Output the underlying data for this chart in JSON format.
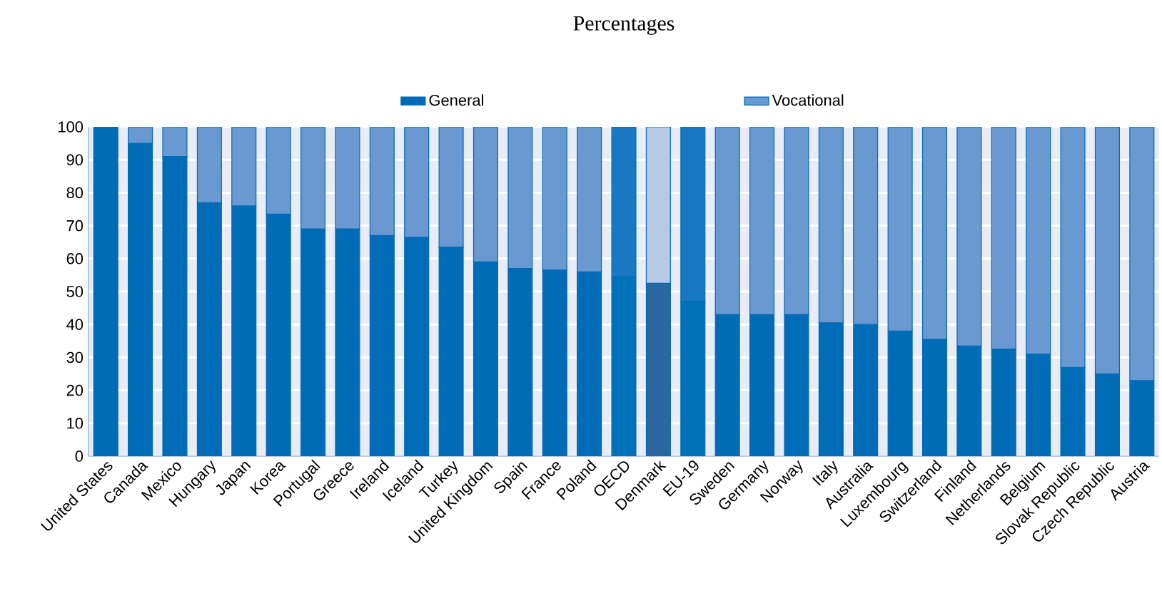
{
  "chart_data": {
    "type": "bar",
    "title": "Percentages",
    "stacked": true,
    "grid": "y",
    "legend": "top",
    "categories": [
      "United States",
      "Canada",
      "Mexico",
      "Hungary",
      "Japan",
      "Korea",
      "Portugal",
      "Greece",
      "Ireland",
      "Iceland",
      "Turkey",
      "United Kingdom",
      "Spain",
      "France",
      "Poland",
      "OECD",
      "Denmark",
      "EU-19",
      "Sweden",
      "Germany",
      "Norway",
      "Italy",
      "Australia",
      "Luxembourg",
      "Switzerland",
      "Finland",
      "Netherlands",
      "Belgium",
      "Slovak Republic",
      "Czech Republic",
      "Austria"
    ],
    "series": [
      {
        "name": "General",
        "color": "#006bb6",
        "values": [
          100,
          95,
          91,
          77,
          76,
          73.5,
          69,
          69,
          67,
          66.5,
          63.5,
          59,
          57,
          56.5,
          56,
          54.5,
          52.5,
          47,
          43,
          43,
          43,
          40.5,
          40,
          38,
          35.5,
          33.5,
          32.5,
          31,
          27,
          25,
          23
        ],
        "colors": [
          "#006bb6",
          "#006bb6",
          "#006bb6",
          "#006bb6",
          "#006bb6",
          "#006bb6",
          "#006bb6",
          "#006bb6",
          "#006bb6",
          "#006bb6",
          "#006bb6",
          "#006bb6",
          "#006bb6",
          "#006bb6",
          "#006bb6",
          "#0070b8",
          "#2b67a0",
          "#0070b8",
          "#006bb6",
          "#006bb6",
          "#006bb6",
          "#006bb6",
          "#006bb6",
          "#006bb6",
          "#006bb6",
          "#006bb6",
          "#006bb6",
          "#006bb6",
          "#006bb6",
          "#006bb6",
          "#006bb6"
        ]
      },
      {
        "name": "Vocational",
        "color": "#6a98d0",
        "values": [
          0,
          5,
          9,
          23,
          24,
          26.5,
          31,
          31,
          33,
          33.5,
          36.5,
          41,
          43,
          43.5,
          44,
          45.5,
          47.5,
          53,
          57,
          57,
          57,
          59.5,
          60,
          62,
          64.5,
          66.5,
          67.5,
          69,
          73,
          75,
          77
        ],
        "colors": [
          "#6a98d0",
          "#6a98d0",
          "#6a98d0",
          "#6a98d0",
          "#6a98d0",
          "#6a98d0",
          "#6a98d0",
          "#6a98d0",
          "#6a98d0",
          "#6a98d0",
          "#6a98d0",
          "#6a98d0",
          "#6a98d0",
          "#6a98d0",
          "#6a98d0",
          "#1a78c2",
          "#b8c9e6",
          "#1a78c2",
          "#6a98d0",
          "#6a98d0",
          "#6a98d0",
          "#6a98d0",
          "#6a98d0",
          "#6a98d0",
          "#6a98d0",
          "#6a98d0",
          "#6a98d0",
          "#6a98d0",
          "#6a98d0",
          "#6a98d0",
          "#6a98d0"
        ]
      }
    ],
    "ylim": [
      0,
      100
    ],
    "yticks": [
      0,
      10,
      20,
      30,
      40,
      50,
      60,
      70,
      80,
      90,
      100
    ]
  }
}
